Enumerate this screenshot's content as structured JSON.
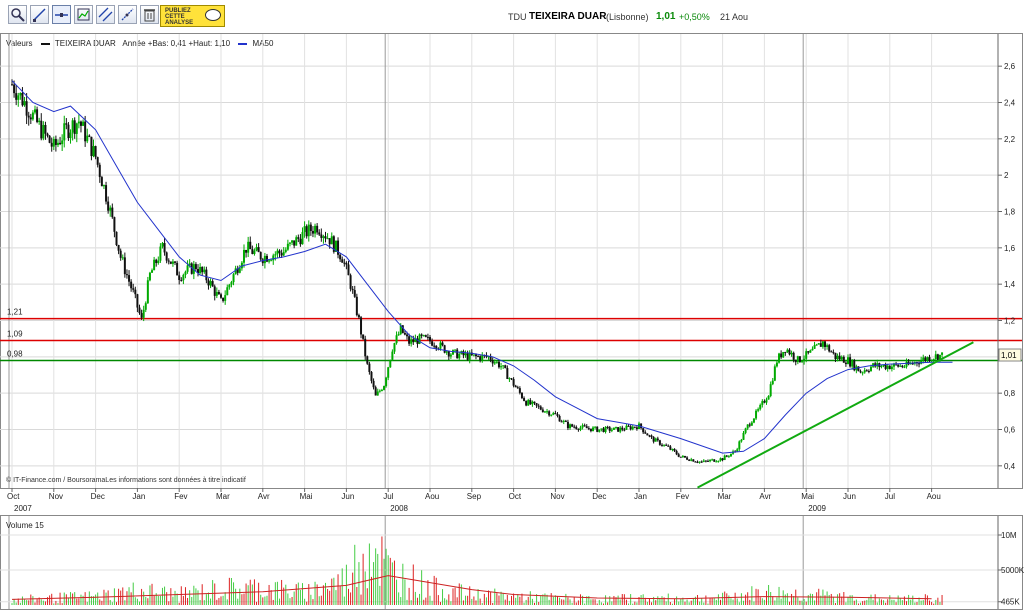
{
  "toolbar": {
    "tools": [
      {
        "icon": "zoom-icon"
      },
      {
        "icon": "line-draw-icon"
      },
      {
        "icon": "horizontal-line-icon"
      },
      {
        "icon": "chart-type-icon"
      },
      {
        "icon": "parallel-lines-icon"
      },
      {
        "icon": "fibonacci-icon"
      },
      {
        "icon": "trash-icon"
      }
    ],
    "publish_label": "PUBLIEZ CETTE ANALYSE"
  },
  "header": {
    "ticker": "TDU",
    "name": "TEIXEIRA DUAR",
    "exchange": "(Lisbonne)",
    "price": "1,01",
    "change": "+0,50%",
    "date": "21 Aou"
  },
  "legend": {
    "label": "Valeurs",
    "series_name": "TEIXEIRA DUAR",
    "range_text": "Année +Bas: 0,41 +Haut: 1,10",
    "ma_name": "MA50"
  },
  "copyright": "© IT-Finance.com / BoursoramaLes informations sont données à titre indicatif",
  "volume_label": "Volume 15",
  "colors": {
    "up": "#00aa00",
    "down": "#111111",
    "ma": "#2233cc",
    "resistance": "#dd0000",
    "support": "#008800",
    "trend": "#11aa11",
    "vol_up": "#44cc44",
    "vol_down": "#dd2222"
  },
  "chart_data": {
    "type": "candlestick",
    "title": "TEIXEIRA DUAR",
    "y_ticks": [
      "0,4",
      "0,6",
      "0,8",
      "1",
      "1,2",
      "1,4",
      "1,6",
      "1,8",
      "2",
      "2,2",
      "2,4",
      "2,6"
    ],
    "ylim": [
      0.3,
      2.7
    ],
    "x_months": [
      "Oct",
      "Nov",
      "Dec",
      "Jan",
      "Fev",
      "Mar",
      "Avr",
      "Mai",
      "Jun",
      "Jul",
      "Aou",
      "Sep",
      "Oct",
      "Nov",
      "Dec",
      "Jan",
      "Fev",
      "Mar",
      "Avr",
      "Mai",
      "Jun",
      "Jul",
      "Aou"
    ],
    "years": [
      {
        "label": "2007",
        "month_index": 0
      },
      {
        "label": "2008",
        "month_index": 9
      },
      {
        "label": "2009",
        "month_index": 19
      }
    ],
    "price_series": [
      {
        "m": 0.0,
        "v": 2.5
      },
      {
        "m": 0.3,
        "v": 2.4
      },
      {
        "m": 0.7,
        "v": 2.25
      },
      {
        "m": 1.0,
        "v": 2.15
      },
      {
        "m": 1.3,
        "v": 2.25
      },
      {
        "m": 1.6,
        "v": 2.3
      },
      {
        "m": 2.0,
        "v": 2.1
      },
      {
        "m": 2.3,
        "v": 1.85
      },
      {
        "m": 2.6,
        "v": 1.55
      },
      {
        "m": 2.9,
        "v": 1.35
      },
      {
        "m": 3.1,
        "v": 1.2
      },
      {
        "m": 3.3,
        "v": 1.45
      },
      {
        "m": 3.6,
        "v": 1.6
      },
      {
        "m": 4.0,
        "v": 1.45
      },
      {
        "m": 4.4,
        "v": 1.5
      },
      {
        "m": 4.7,
        "v": 1.42
      },
      {
        "m": 5.0,
        "v": 1.3
      },
      {
        "m": 5.3,
        "v": 1.45
      },
      {
        "m": 5.6,
        "v": 1.6
      },
      {
        "m": 6.0,
        "v": 1.55
      },
      {
        "m": 6.5,
        "v": 1.58
      },
      {
        "m": 7.0,
        "v": 1.68
      },
      {
        "m": 7.3,
        "v": 1.72
      },
      {
        "m": 7.6,
        "v": 1.65
      },
      {
        "m": 7.9,
        "v": 1.55
      },
      {
        "m": 8.1,
        "v": 1.4
      },
      {
        "m": 8.3,
        "v": 1.2
      },
      {
        "m": 8.5,
        "v": 0.95
      },
      {
        "m": 8.7,
        "v": 0.78
      },
      {
        "m": 8.9,
        "v": 0.85
      },
      {
        "m": 9.1,
        "v": 1.05
      },
      {
        "m": 9.3,
        "v": 1.15
      },
      {
        "m": 9.5,
        "v": 1.08
      },
      {
        "m": 9.8,
        "v": 1.1
      },
      {
        "m": 10.1,
        "v": 1.08
      },
      {
        "m": 10.5,
        "v": 1.02
      },
      {
        "m": 11.0,
        "v": 1.0
      },
      {
        "m": 11.4,
        "v": 1.0
      },
      {
        "m": 11.7,
        "v": 0.95
      },
      {
        "m": 12.0,
        "v": 0.85
      },
      {
        "m": 12.3,
        "v": 0.75
      },
      {
        "m": 12.6,
        "v": 0.72
      },
      {
        "m": 13.0,
        "v": 0.68
      },
      {
        "m": 13.3,
        "v": 0.62
      },
      {
        "m": 14.0,
        "v": 0.6
      },
      {
        "m": 14.5,
        "v": 0.6
      },
      {
        "m": 15.0,
        "v": 0.62
      },
      {
        "m": 15.3,
        "v": 0.55
      },
      {
        "m": 15.7,
        "v": 0.5
      },
      {
        "m": 16.0,
        "v": 0.45
      },
      {
        "m": 16.5,
        "v": 0.42
      },
      {
        "m": 17.0,
        "v": 0.44
      },
      {
        "m": 17.3,
        "v": 0.48
      },
      {
        "m": 17.6,
        "v": 0.62
      },
      {
        "m": 17.9,
        "v": 0.72
      },
      {
        "m": 18.1,
        "v": 0.8
      },
      {
        "m": 18.3,
        "v": 0.98
      },
      {
        "m": 18.5,
        "v": 1.05
      },
      {
        "m": 18.8,
        "v": 0.98
      },
      {
        "m": 19.1,
        "v": 1.02
      },
      {
        "m": 19.4,
        "v": 1.08
      },
      {
        "m": 19.7,
        "v": 1.0
      },
      {
        "m": 20.0,
        "v": 0.98
      },
      {
        "m": 20.3,
        "v": 0.92
      },
      {
        "m": 20.6,
        "v": 0.95
      },
      {
        "m": 21.0,
        "v": 0.95
      },
      {
        "m": 21.4,
        "v": 0.95
      },
      {
        "m": 21.7,
        "v": 0.98
      },
      {
        "m": 22.0,
        "v": 1.0
      },
      {
        "m": 22.3,
        "v": 1.01
      }
    ],
    "ma50": [
      {
        "m": 0.0,
        "v": 2.52
      },
      {
        "m": 0.5,
        "v": 2.4
      },
      {
        "m": 1.0,
        "v": 2.35
      },
      {
        "m": 1.4,
        "v": 2.38
      },
      {
        "m": 2.0,
        "v": 2.25
      },
      {
        "m": 2.5,
        "v": 2.05
      },
      {
        "m": 3.0,
        "v": 1.85
      },
      {
        "m": 3.5,
        "v": 1.7
      },
      {
        "m": 4.0,
        "v": 1.55
      },
      {
        "m": 4.5,
        "v": 1.45
      },
      {
        "m": 5.0,
        "v": 1.42
      },
      {
        "m": 5.5,
        "v": 1.5
      },
      {
        "m": 6.0,
        "v": 1.53
      },
      {
        "m": 6.5,
        "v": 1.55
      },
      {
        "m": 7.0,
        "v": 1.58
      },
      {
        "m": 7.5,
        "v": 1.62
      },
      {
        "m": 8.0,
        "v": 1.55
      },
      {
        "m": 8.5,
        "v": 1.4
      },
      {
        "m": 9.0,
        "v": 1.25
      },
      {
        "m": 9.5,
        "v": 1.12
      },
      {
        "m": 10.0,
        "v": 1.05
      },
      {
        "m": 10.5,
        "v": 1.03
      },
      {
        "m": 11.0,
        "v": 1.02
      },
      {
        "m": 11.5,
        "v": 1.0
      },
      {
        "m": 12.0,
        "v": 0.95
      },
      {
        "m": 12.5,
        "v": 0.87
      },
      {
        "m": 13.0,
        "v": 0.78
      },
      {
        "m": 13.5,
        "v": 0.72
      },
      {
        "m": 14.0,
        "v": 0.66
      },
      {
        "m": 15.0,
        "v": 0.62
      },
      {
        "m": 16.0,
        "v": 0.55
      },
      {
        "m": 17.0,
        "v": 0.47
      },
      {
        "m": 17.5,
        "v": 0.48
      },
      {
        "m": 18.0,
        "v": 0.55
      },
      {
        "m": 18.5,
        "v": 0.68
      },
      {
        "m": 19.0,
        "v": 0.8
      },
      {
        "m": 19.5,
        "v": 0.88
      },
      {
        "m": 20.0,
        "v": 0.93
      },
      {
        "m": 20.5,
        "v": 0.95
      },
      {
        "m": 21.0,
        "v": 0.96
      },
      {
        "m": 22.0,
        "v": 0.97
      },
      {
        "m": 22.5,
        "v": 0.97
      }
    ],
    "h_lines": [
      {
        "value": 1.21,
        "label": "1,21",
        "color": "#dd0000"
      },
      {
        "value": 1.09,
        "label": "1,09",
        "color": "#dd0000"
      },
      {
        "value": 0.98,
        "label": "0,98",
        "color": "#008800"
      }
    ],
    "trendline": {
      "from": {
        "m": 16.4,
        "v": 0.28
      },
      "to": {
        "m": 23.0,
        "v": 1.08
      },
      "color": "#11aa11"
    },
    "last_price_tag": "1,01",
    "volume": {
      "ticks": [
        "10M",
        "5000K",
        "465K"
      ],
      "ylim": [
        0,
        12000000
      ],
      "series": [
        {
          "m": 0,
          "v": 900000
        },
        {
          "m": 1,
          "v": 1200000
        },
        {
          "m": 2,
          "v": 1500000
        },
        {
          "m": 3,
          "v": 2500000
        },
        {
          "m": 4,
          "v": 1800000
        },
        {
          "m": 5,
          "v": 2800000
        },
        {
          "m": 6,
          "v": 3000000
        },
        {
          "m": 7,
          "v": 2200000
        },
        {
          "m": 8,
          "v": 4500000
        },
        {
          "m": 8.6,
          "v": 11500000
        },
        {
          "m": 9,
          "v": 6000000
        },
        {
          "m": 10,
          "v": 3000000
        },
        {
          "m": 11,
          "v": 1800000
        },
        {
          "m": 12,
          "v": 1500000
        },
        {
          "m": 13,
          "v": 1200000
        },
        {
          "m": 14,
          "v": 1000000
        },
        {
          "m": 15,
          "v": 1200000
        },
        {
          "m": 16,
          "v": 1100000
        },
        {
          "m": 17,
          "v": 1300000
        },
        {
          "m": 18,
          "v": 2200000
        },
        {
          "m": 19,
          "v": 1800000
        },
        {
          "m": 20,
          "v": 1300000
        },
        {
          "m": 21,
          "v": 1000000
        },
        {
          "m": 22,
          "v": 1100000
        }
      ],
      "ma": [
        {
          "m": 0,
          "v": 800000
        },
        {
          "m": 2,
          "v": 1100000
        },
        {
          "m": 4,
          "v": 1500000
        },
        {
          "m": 6,
          "v": 1900000
        },
        {
          "m": 8,
          "v": 2800000
        },
        {
          "m": 9,
          "v": 4200000
        },
        {
          "m": 10,
          "v": 3200000
        },
        {
          "m": 11,
          "v": 2200000
        },
        {
          "m": 12,
          "v": 1500000
        },
        {
          "m": 14,
          "v": 1000000
        },
        {
          "m": 16,
          "v": 900000
        },
        {
          "m": 18,
          "v": 1200000
        },
        {
          "m": 20,
          "v": 1100000
        },
        {
          "m": 22,
          "v": 900000
        }
      ]
    }
  }
}
